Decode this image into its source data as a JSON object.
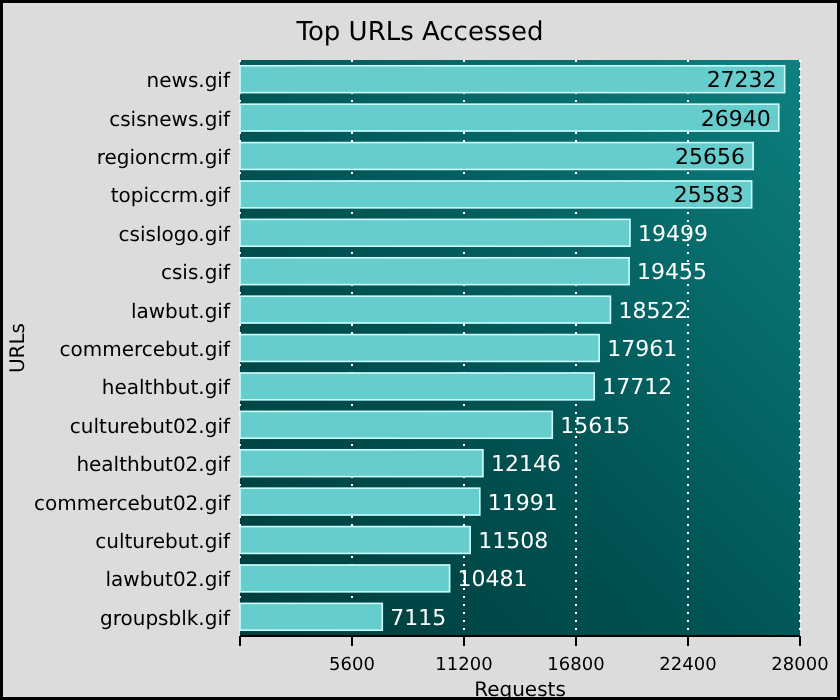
{
  "chart_data": {
    "type": "bar",
    "orientation": "horizontal",
    "title": "Top URLs Accessed",
    "xlabel": "Requests",
    "ylabel": "URLs",
    "categories": [
      "news.gif",
      "csisnews.gif",
      "regioncrm.gif",
      "topiccrm.gif",
      "csislogo.gif",
      "csis.gif",
      "lawbut.gif",
      "commercebut.gif",
      "healthbut.gif",
      "culturebut02.gif",
      "healthbut02.gif",
      "commercebut02.gif",
      "culturebut.gif",
      "lawbut02.gif",
      "groupsblk.gif"
    ],
    "values": [
      27232,
      26940,
      25656,
      25583,
      19499,
      19455,
      18522,
      17961,
      17712,
      15615,
      12146,
      11991,
      11508,
      10481,
      7115
    ],
    "color": "#66cccc",
    "xlim": [
      0,
      28000
    ],
    "xticks": [
      {
        "value": 0,
        "label": null
      },
      5600,
      11200,
      16800,
      22400,
      28000
    ],
    "grid": "x",
    "data_labels": true
  }
}
